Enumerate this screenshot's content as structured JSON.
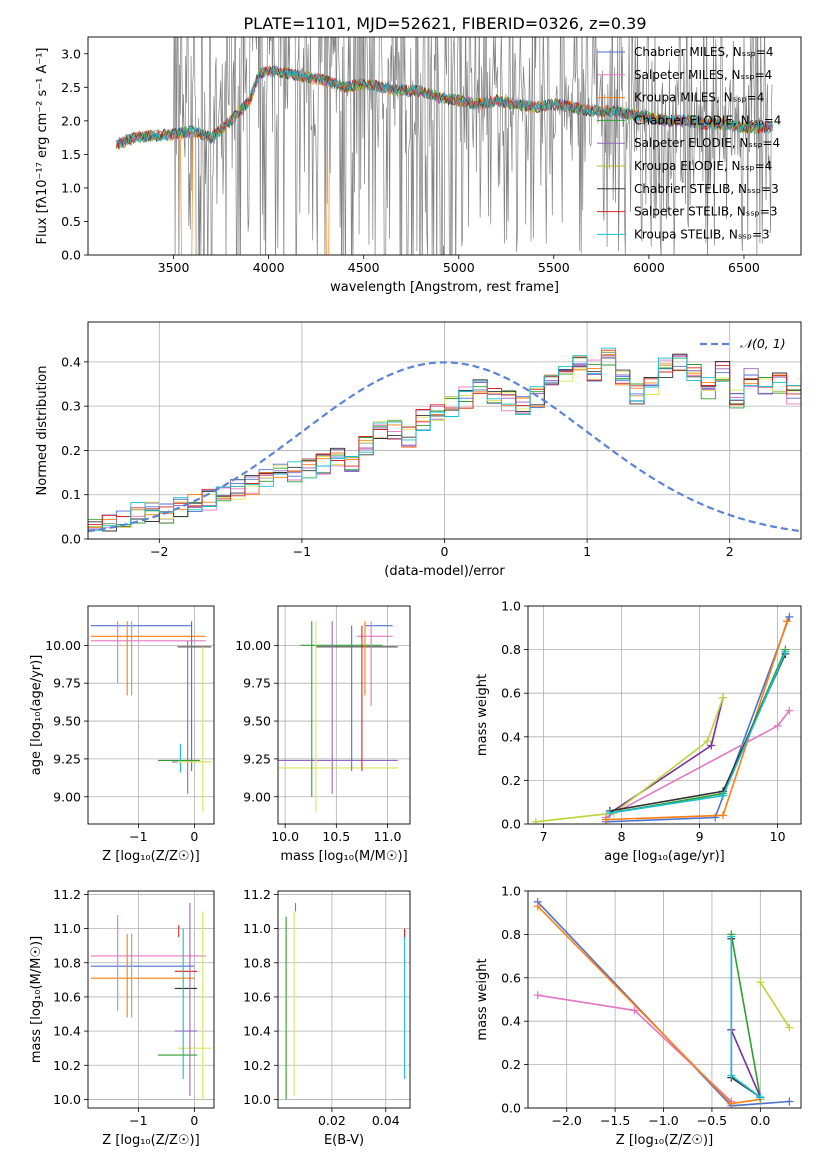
{
  "chart_data": [
    {
      "type": "line",
      "title": "PLATE=1101, MJD=52621, FIBERID=0326, z=0.39",
      "xlabel": "wavelength [Angstrom, rest frame]",
      "ylabel": "Flux [fλ10⁻¹⁷ erg cm⁻² s⁻¹ A⁻¹]",
      "xlim": [
        3050,
        6800
      ],
      "ylim": [
        0,
        3.25
      ],
      "xticks": [
        3500,
        4000,
        4500,
        5000,
        5500,
        6000,
        6500
      ],
      "yticks": [
        0.0,
        0.5,
        1.0,
        1.5,
        2.0,
        2.5,
        3.0
      ],
      "grid": false,
      "legend_position": "top-right",
      "data_color": "#808080",
      "series": [
        {
          "name": "Chabrier MILES, N_SSP=4",
          "color": "#4c72d0"
        },
        {
          "name": "Salpeter MILES, N_SSP=4",
          "color": "#e377c2"
        },
        {
          "name": "Kroupa MILES, N_SSP=4",
          "color": "#ff7f0e"
        },
        {
          "name": "Chabrier ELODIE, N_SSP=4",
          "color": "#2ca02c"
        },
        {
          "name": "Salpeter ELODIE, N_SSP=4",
          "color": "#9467bd"
        },
        {
          "name": "Kroupa ELODIE, N_SSP=4",
          "color": "#bcbd22"
        },
        {
          "name": "Chabrier STELIB, N_SSP=3",
          "color": "#333333"
        },
        {
          "name": "Salpeter STELIB, N_SSP=3",
          "color": "#d62728"
        },
        {
          "name": "Kroupa STELIB, N_SSP=3",
          "color": "#17becf"
        }
      ],
      "model_profile": {
        "x": [
          3200,
          3300,
          3400,
          3500,
          3600,
          3700,
          3800,
          3900,
          3950,
          4000,
          4100,
          4200,
          4300,
          4400,
          4500,
          4600,
          4700,
          4800,
          4900,
          5000,
          5100,
          5200,
          5300,
          5400,
          5500,
          5600,
          5700,
          5800,
          5900,
          6000,
          6100,
          6200,
          6300,
          6400,
          6500,
          6600
        ],
        "y": [
          1.65,
          1.75,
          1.78,
          1.8,
          1.85,
          1.75,
          2.0,
          2.3,
          2.7,
          2.75,
          2.7,
          2.65,
          2.6,
          2.5,
          2.55,
          2.5,
          2.45,
          2.45,
          2.35,
          2.3,
          2.25,
          2.3,
          2.25,
          2.2,
          2.25,
          2.2,
          2.15,
          2.15,
          2.1,
          2.05,
          2.0,
          2.0,
          1.95,
          1.95,
          1.9,
          1.9
        ]
      }
    },
    {
      "type": "line",
      "xlabel": "(data-model)/error",
      "ylabel": "Normed distribution",
      "xlim": [
        -2.5,
        2.5
      ],
      "ylim": [
        0,
        0.49
      ],
      "xticks": [
        -2,
        -1,
        0,
        1,
        2
      ],
      "yticks": [
        0.0,
        0.1,
        0.2,
        0.3,
        0.4
      ],
      "grid": true,
      "legend_position": "top-right",
      "reference_curve": {
        "name": "𝒩(0, 1)",
        "color": "#5b84d6",
        "style": "dashed"
      },
      "histogram_bins": {
        "edges_start": -2.5,
        "bin_width": 0.1,
        "values": [
          0.02,
          0.03,
          0.05,
          0.06,
          0.06,
          0.06,
          0.07,
          0.08,
          0.09,
          0.1,
          0.11,
          0.12,
          0.14,
          0.15,
          0.15,
          0.16,
          0.17,
          0.18,
          0.17,
          0.21,
          0.24,
          0.25,
          0.23,
          0.27,
          0.28,
          0.3,
          0.32,
          0.34,
          0.33,
          0.31,
          0.3,
          0.32,
          0.37,
          0.38,
          0.4,
          0.38,
          0.41,
          0.37,
          0.33,
          0.35,
          0.39,
          0.4,
          0.37,
          0.34,
          0.38,
          0.32,
          0.36,
          0.34,
          0.35,
          0.33,
          0.35,
          0.32,
          0.3,
          0.28,
          0.32,
          0.25,
          0.27,
          0.24,
          0.28,
          0.22,
          0.23,
          0.2,
          0.24,
          0.21,
          0.17,
          0.17,
          0.15,
          0.15,
          0.13,
          0.15,
          0.11,
          0.12,
          0.09,
          0.1,
          0.09,
          0.06,
          0.07,
          0.06,
          0.06,
          0.05
        ]
      }
    },
    {
      "type": "scatter",
      "xlabel": "Z [log₁₀(Z/Z☉)]",
      "ylabel": "age  [log₁₀(age/yr)]",
      "xlim": [
        -1.9,
        0.35
      ],
      "ylim": [
        8.82,
        10.26
      ],
      "xticks": [
        -1,
        0
      ],
      "yticks": [
        9.0,
        9.25,
        9.5,
        9.75,
        10.0
      ],
      "grid": true,
      "errorbars": [
        {
          "x": -0.9,
          "xerr": 0.0,
          "y": 10.13,
          "yerr": 0.0,
          "x_lo": -1.85,
          "x_hi": -0.05,
          "y_lo": 10.13,
          "y_hi": 10.13,
          "color": "#4c72d0"
        },
        {
          "x": -0.9,
          "x_lo": -1.85,
          "x_hi": 0.2,
          "y": 10.06,
          "y_lo": 10.06,
          "y_hi": 10.06,
          "color": "#ff7f0e"
        },
        {
          "x": -0.9,
          "x_lo": -1.85,
          "x_hi": 0.2,
          "y": 10.03,
          "y_lo": 10.03,
          "y_hi": 10.03,
          "color": "#e377c2"
        },
        {
          "x": -1.37,
          "x_lo": -1.37,
          "x_hi": -1.37,
          "y": 10.0,
          "y_lo": 9.75,
          "y_hi": 10.16,
          "color": "#e377c2"
        },
        {
          "x": -1.2,
          "x_lo": -1.2,
          "x_hi": -1.2,
          "y": 10.0,
          "y_lo": 9.67,
          "y_hi": 10.16,
          "color": "#ff7f0e"
        },
        {
          "x": -1.12,
          "x_lo": -1.12,
          "x_hi": -1.12,
          "y": 10.0,
          "y_lo": 9.67,
          "y_hi": 10.16,
          "color": "#a0a0a0"
        },
        {
          "x": 0.0,
          "x_lo": -0.3,
          "x_hi": 0.3,
          "y": 9.99,
          "y_lo": 9.99,
          "y_hi": 9.99,
          "color": "#333333"
        },
        {
          "x": -0.05,
          "x_lo": -0.05,
          "x_hi": -0.05,
          "y": 10.0,
          "y_lo": 9.17,
          "y_hi": 10.16,
          "color": "#4c72d0"
        },
        {
          "x": -0.3,
          "x_lo": -0.65,
          "x_hi": 0.1,
          "y": 9.24,
          "y_lo": 9.24,
          "y_hi": 9.24,
          "color": "#2ca02c"
        },
        {
          "x": -0.15,
          "x_lo": -0.4,
          "x_hi": 0.3,
          "y": 9.23,
          "y_lo": 9.23,
          "y_hi": 9.23,
          "color": "#9467bd"
        },
        {
          "x": -0.12,
          "x_lo": -0.12,
          "x_hi": -0.12,
          "y": 9.24,
          "y_lo": 9.02,
          "y_hi": 10.03,
          "color": "#9467bd"
        },
        {
          "x": -0.25,
          "x_lo": -0.25,
          "x_hi": -0.25,
          "y": 9.24,
          "y_lo": 9.16,
          "y_hi": 9.35,
          "color": "#17becf"
        },
        {
          "x": 0.15,
          "x_lo": 0.15,
          "x_hi": 0.15,
          "y": 9.5,
          "y_lo": 8.9,
          "y_hi": 9.99,
          "color": "#dce65a"
        },
        {
          "x": 0.0,
          "x_lo": -0.3,
          "x_hi": 0.3,
          "y": 9.23,
          "y_lo": 9.23,
          "y_hi": 9.23,
          "color": "#dce65a"
        }
      ]
    },
    {
      "type": "scatter",
      "xlabel": "mass [log₁₀(M/M☉)]",
      "xlim": [
        9.93,
        11.22
      ],
      "ylim": [
        8.82,
        10.26
      ],
      "xticks": [
        10.0,
        10.5,
        11.0
      ],
      "yticks": [
        9.0,
        9.25,
        9.5,
        9.75,
        10.0
      ],
      "grid": true,
      "errorbars": [
        {
          "x_lo": 10.78,
          "x_hi": 11.05,
          "y_lo": 10.13,
          "y_hi": 10.13,
          "color": "#4c72d0"
        },
        {
          "x_lo": 10.7,
          "x_hi": 11.05,
          "y_lo": 10.06,
          "y_hi": 10.06,
          "color": "#e377c2"
        },
        {
          "x_lo": 10.3,
          "x_hi": 11.1,
          "y_lo": 9.99,
          "y_hi": 9.99,
          "color": "#333333"
        },
        {
          "x_lo": 10.15,
          "x_hi": 10.95,
          "y_lo": 10.0,
          "y_hi": 10.0,
          "color": "#2ca02c"
        },
        {
          "x_lo": 9.93,
          "x_hi": 11.1,
          "y_lo": 9.24,
          "y_hi": 9.24,
          "color": "#9467bd"
        },
        {
          "x_lo": 9.93,
          "x_hi": 11.1,
          "y_lo": 9.19,
          "y_hi": 9.19,
          "color": "#dce65a"
        },
        {
          "x_lo": 10.26,
          "x_hi": 10.26,
          "y_lo": 9.0,
          "y_hi": 10.16,
          "color": "#2ca02c"
        },
        {
          "x_lo": 10.3,
          "x_hi": 10.3,
          "y_lo": 8.9,
          "y_hi": 10.16,
          "color": "#dce65a"
        },
        {
          "x_lo": 10.46,
          "x_hi": 10.46,
          "y_lo": 9.02,
          "y_hi": 10.16,
          "color": "#9467bd"
        },
        {
          "x_lo": 10.65,
          "x_hi": 10.65,
          "y_lo": 9.17,
          "y_hi": 10.13,
          "color": "#4c72d0"
        },
        {
          "x_lo": 10.75,
          "x_hi": 10.75,
          "y_lo": 9.17,
          "y_hi": 10.13,
          "color": "#d62728"
        },
        {
          "x_lo": 10.84,
          "x_hi": 10.84,
          "y_lo": 9.6,
          "y_hi": 10.16,
          "color": "#e377c2"
        },
        {
          "x_lo": 10.78,
          "x_hi": 10.78,
          "y_lo": 9.67,
          "y_hi": 10.16,
          "color": "#ff7f0e"
        }
      ]
    },
    {
      "type": "line",
      "xlabel": "age  [log₁₀(age/yr)]",
      "ylabel": "mass weight",
      "xlim": [
        6.8,
        10.3
      ],
      "ylim": [
        0,
        1.0
      ],
      "xticks": [
        7,
        8,
        9,
        10
      ],
      "yticks": [
        0.0,
        0.2,
        0.4,
        0.6,
        0.8,
        1.0
      ],
      "grid": true,
      "series": [
        {
          "name": "Chabrier MILES",
          "color": "#4c72d0",
          "x": [
            7.8,
            9.2,
            10.15
          ],
          "y": [
            0.01,
            0.03,
            0.95
          ]
        },
        {
          "name": "Salpeter MILES",
          "color": "#e377c2",
          "x": [
            7.8,
            10.0,
            10.15
          ],
          "y": [
            0.03,
            0.45,
            0.52
          ]
        },
        {
          "name": "Kroupa MILES",
          "color": "#ff7f0e",
          "x": [
            7.8,
            9.3,
            10.12
          ],
          "y": [
            0.02,
            0.04,
            0.93
          ]
        },
        {
          "name": "Chabrier ELODIE",
          "color": "#2ca02c",
          "x": [
            7.85,
            9.3,
            10.1
          ],
          "y": [
            0.05,
            0.14,
            0.8
          ]
        },
        {
          "name": "Salpeter ELODIE",
          "color": "#7b2fa0",
          "x": [
            7.85,
            9.15,
            9.3
          ],
          "y": [
            0.05,
            0.36,
            0.58
          ]
        },
        {
          "name": "Kroupa ELODIE",
          "color": "#bcd43a",
          "x": [
            6.9,
            7.9,
            9.1,
            9.3
          ],
          "y": [
            0.01,
            0.05,
            0.38,
            0.58
          ]
        },
        {
          "name": "Chabrier STELIB",
          "color": "#333333",
          "x": [
            7.85,
            9.3,
            10.1
          ],
          "y": [
            0.06,
            0.15,
            0.78
          ]
        },
        {
          "name": "Kroupa STELIB",
          "color": "#17becf",
          "x": [
            7.85,
            9.3,
            10.1
          ],
          "y": [
            0.05,
            0.13,
            0.79
          ]
        }
      ]
    },
    {
      "type": "scatter",
      "xlabel": "Z [log₁₀(Z/Z☉)]",
      "ylabel": "mass [log₁₀(M/M☉)]",
      "xlim": [
        -1.9,
        0.35
      ],
      "ylim": [
        9.95,
        11.22
      ],
      "xticks": [
        -1,
        0
      ],
      "yticks": [
        10.0,
        10.2,
        10.4,
        10.6,
        10.8,
        11.0,
        11.2
      ],
      "grid": true,
      "errorbars": [
        {
          "x_lo": -1.85,
          "x_hi": 0.2,
          "y_lo": 10.84,
          "y_hi": 10.84,
          "color": "#e377c2"
        },
        {
          "x_lo": -1.85,
          "x_hi": 0.0,
          "y_lo": 10.78,
          "y_hi": 10.78,
          "color": "#4c72d0"
        },
        {
          "x_lo": -1.85,
          "x_hi": 0.0,
          "y_lo": 10.71,
          "y_hi": 10.71,
          "color": "#ff7f0e"
        },
        {
          "x_lo": -1.37,
          "x_hi": -1.37,
          "y_lo": 10.52,
          "y_hi": 11.08,
          "color": "#e377c2"
        },
        {
          "x_lo": -1.2,
          "x_hi": -1.2,
          "y_lo": 10.48,
          "y_hi": 10.97,
          "color": "#ff7f0e"
        },
        {
          "x_lo": -1.12,
          "x_hi": -1.12,
          "y_lo": 10.48,
          "y_hi": 10.97,
          "color": "#a0a0a0"
        },
        {
          "x_lo": -0.35,
          "x_hi": 0.05,
          "y_lo": 10.75,
          "y_hi": 10.75,
          "color": "#d62728"
        },
        {
          "x_lo": -0.35,
          "x_hi": 0.05,
          "y_lo": 10.65,
          "y_hi": 10.65,
          "color": "#333333"
        },
        {
          "x_lo": -0.35,
          "x_hi": 0.05,
          "y_lo": 10.4,
          "y_hi": 10.4,
          "color": "#9467bd"
        },
        {
          "x_lo": -0.65,
          "x_hi": 0.05,
          "y_lo": 10.26,
          "y_hi": 10.26,
          "color": "#2ca02c"
        },
        {
          "x_lo": -0.3,
          "x_hi": 0.3,
          "y_lo": 10.3,
          "y_hi": 10.3,
          "color": "#dce65a"
        },
        {
          "x_lo": -0.2,
          "x_hi": -0.2,
          "y_lo": 10.12,
          "y_hi": 11.0,
          "color": "#17becf"
        },
        {
          "x_lo": -0.08,
          "x_hi": -0.08,
          "y_lo": 10.02,
          "y_hi": 11.15,
          "color": "#9467bd"
        },
        {
          "x_lo": 0.15,
          "x_hi": 0.15,
          "y_lo": 10.0,
          "y_hi": 11.1,
          "color": "#dce65a"
        },
        {
          "x_lo": -0.28,
          "x_hi": -0.28,
          "y_lo": 10.95,
          "y_hi": 11.02,
          "color": "#d62728"
        }
      ]
    },
    {
      "type": "scatter",
      "xlabel": "E(B-V)",
      "xlim": [
        0.0,
        0.049
      ],
      "ylim": [
        9.95,
        11.22
      ],
      "xticks": [
        0.02,
        0.04
      ],
      "yticks": [
        10.0,
        10.2,
        10.4,
        10.6,
        10.8,
        11.0,
        11.2
      ],
      "grid": true,
      "errorbars": [
        {
          "x_lo": 0.003,
          "x_hi": 0.003,
          "y_lo": 10.0,
          "y_hi": 11.07,
          "color": "#2ca02c"
        },
        {
          "x_lo": 0.006,
          "x_hi": 0.006,
          "y_lo": 10.02,
          "y_hi": 11.1,
          "color": "#dce65a"
        },
        {
          "x_lo": 0.0065,
          "x_hi": 0.0065,
          "y_lo": 11.1,
          "y_hi": 11.15,
          "color": "#9467bd"
        },
        {
          "x_lo": 0.047,
          "x_hi": 0.047,
          "y_lo": 10.12,
          "y_hi": 11.0,
          "color": "#17becf"
        },
        {
          "x_lo": 0.047,
          "x_hi": 0.047,
          "y_lo": 10.95,
          "y_hi": 11.0,
          "color": "#d62728"
        }
      ]
    },
    {
      "type": "line",
      "xlabel": "Z [log₁₀(Z/Z☉)]",
      "ylabel": "mass weight",
      "xlim": [
        -2.4,
        0.42
      ],
      "ylim": [
        0,
        1.0
      ],
      "xticks": [
        -2.0,
        -1.5,
        -1.0,
        -0.5,
        0.0
      ],
      "yticks": [
        0.0,
        0.2,
        0.4,
        0.6,
        0.8,
        1.0
      ],
      "grid": true,
      "series": [
        {
          "name": "Chabrier MILES",
          "color": "#4c72d0",
          "x": [
            -2.3,
            -0.3,
            0.3
          ],
          "y": [
            0.95,
            0.01,
            0.03
          ]
        },
        {
          "name": "Salpeter MILES",
          "color": "#e377c2",
          "x": [
            -2.3,
            -1.3,
            -0.3
          ],
          "y": [
            0.52,
            0.45,
            0.03
          ]
        },
        {
          "name": "Kroupa MILES",
          "color": "#ff7f0e",
          "x": [
            -2.3,
            -0.3,
            0.0
          ],
          "y": [
            0.93,
            0.02,
            0.04
          ]
        },
        {
          "name": "Chabrier ELODIE",
          "color": "#2ca02c",
          "x": [
            -0.3,
            0.0
          ],
          "y": [
            0.8,
            0.05
          ]
        },
        {
          "name": "Salpeter ELODIE",
          "color": "#7b2fa0",
          "x": [
            -0.3,
            -0.3,
            0.0
          ],
          "y": [
            0.36,
            0.36,
            0.05
          ]
        },
        {
          "name": "Kroupa ELODIE",
          "color": "#bcd43a",
          "x": [
            0.0,
            0.3
          ],
          "y": [
            0.58,
            0.37
          ]
        },
        {
          "name": "Chabrier STELIB",
          "color": "#333333",
          "x": [
            -0.3,
            -0.3,
            0.0
          ],
          "y": [
            0.78,
            0.14,
            0.05
          ]
        },
        {
          "name": "Kroupa STELIB",
          "color": "#17becf",
          "x": [
            -0.3,
            -0.3,
            0.0
          ],
          "y": [
            0.79,
            0.15,
            0.05
          ]
        }
      ]
    }
  ]
}
